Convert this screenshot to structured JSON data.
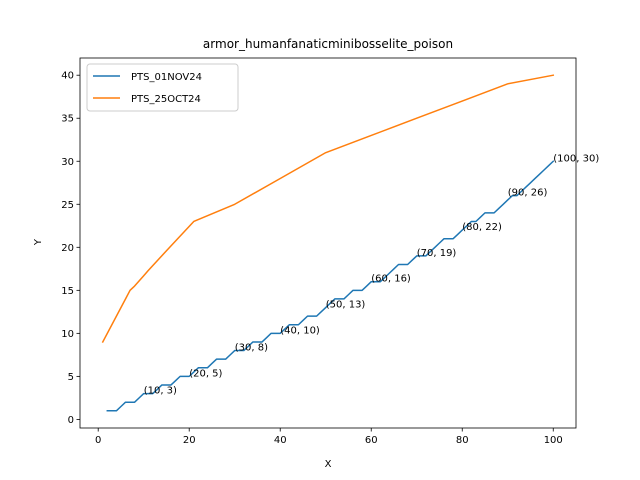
{
  "chart_data": {
    "type": "line",
    "title": "armor_humanfanaticminibosselite_poison",
    "xlabel": "X",
    "ylabel": "Y",
    "xlim": [
      -4,
      105
    ],
    "ylim": [
      -1,
      42
    ],
    "xticks": [
      0,
      20,
      40,
      60,
      80,
      100
    ],
    "yticks": [
      0,
      5,
      10,
      15,
      20,
      25,
      30,
      35,
      40
    ],
    "grid": false,
    "legend_position": "upper-left",
    "series": [
      {
        "name": "PTS_01NOV24",
        "color": "#1f77b4",
        "x": [
          2,
          3,
          4,
          5,
          6,
          7,
          8,
          9,
          10,
          11,
          12,
          13,
          14,
          15,
          16,
          17,
          18,
          19,
          20,
          21,
          22,
          23,
          24,
          25,
          26,
          27,
          28,
          29,
          30,
          31,
          32,
          33,
          34,
          35,
          36,
          37,
          38,
          39,
          40,
          41,
          42,
          43,
          44,
          45,
          46,
          47,
          48,
          49,
          50,
          51,
          52,
          53,
          54,
          55,
          56,
          57,
          58,
          59,
          60,
          61,
          62,
          63,
          64,
          65,
          66,
          67,
          68,
          69,
          70,
          71,
          72,
          73,
          74,
          75,
          76,
          77,
          78,
          79,
          80,
          81,
          82,
          83,
          84,
          85,
          86,
          87,
          88,
          89,
          90,
          91,
          92,
          93,
          94,
          95,
          96,
          97,
          98,
          99,
          100
        ],
        "y": [
          1,
          1,
          1,
          1.5,
          2,
          2,
          2,
          2.5,
          3,
          3,
          3,
          3.5,
          4,
          4,
          4,
          4.5,
          5,
          5,
          5,
          5.5,
          6,
          6,
          6,
          6.5,
          7,
          7,
          7,
          7.5,
          8,
          8,
          8,
          8.5,
          9,
          9,
          9,
          9.5,
          10,
          10,
          10,
          10.5,
          11,
          11,
          11,
          11.5,
          12,
          12,
          12,
          12.5,
          13,
          13.5,
          14,
          14,
          14,
          14.5,
          15,
          15,
          15,
          15.5,
          16,
          16,
          16,
          16.5,
          17,
          17.5,
          18,
          18,
          18,
          18.5,
          19,
          19,
          19,
          19.5,
          20,
          20.5,
          21,
          21,
          21,
          21.5,
          22,
          22.5,
          23,
          23,
          23.5,
          24,
          24,
          24,
          24.5,
          25,
          25.5,
          26,
          26,
          26.5,
          27,
          27.5,
          28,
          28.5,
          29,
          29.5,
          30
        ]
      },
      {
        "name": "PTS_25OCT24",
        "color": "#ff7f0e",
        "x": [
          1,
          7,
          8,
          10,
          11,
          15,
          21,
          30,
          40,
          50,
          60,
          70,
          80,
          90,
          100
        ],
        "y": [
          9,
          15,
          15.5,
          16.7,
          17.3,
          19.6,
          23,
          25,
          28,
          31,
          33,
          35,
          37,
          39,
          40
        ]
      }
    ],
    "annotations": [
      {
        "text": "(10, 3)",
        "x": 10,
        "y": 3
      },
      {
        "text": "(20, 5)",
        "x": 20,
        "y": 5
      },
      {
        "text": "(30, 8)",
        "x": 30,
        "y": 8
      },
      {
        "text": "(40, 10)",
        "x": 40,
        "y": 10
      },
      {
        "text": "(50, 13)",
        "x": 50,
        "y": 13
      },
      {
        "text": "(60, 16)",
        "x": 60,
        "y": 16
      },
      {
        "text": "(70, 19)",
        "x": 70,
        "y": 19
      },
      {
        "text": "(80, 22)",
        "x": 80,
        "y": 22
      },
      {
        "text": "(90, 26)",
        "x": 90,
        "y": 26
      },
      {
        "text": "(100, 30)",
        "x": 100,
        "y": 30
      }
    ]
  }
}
